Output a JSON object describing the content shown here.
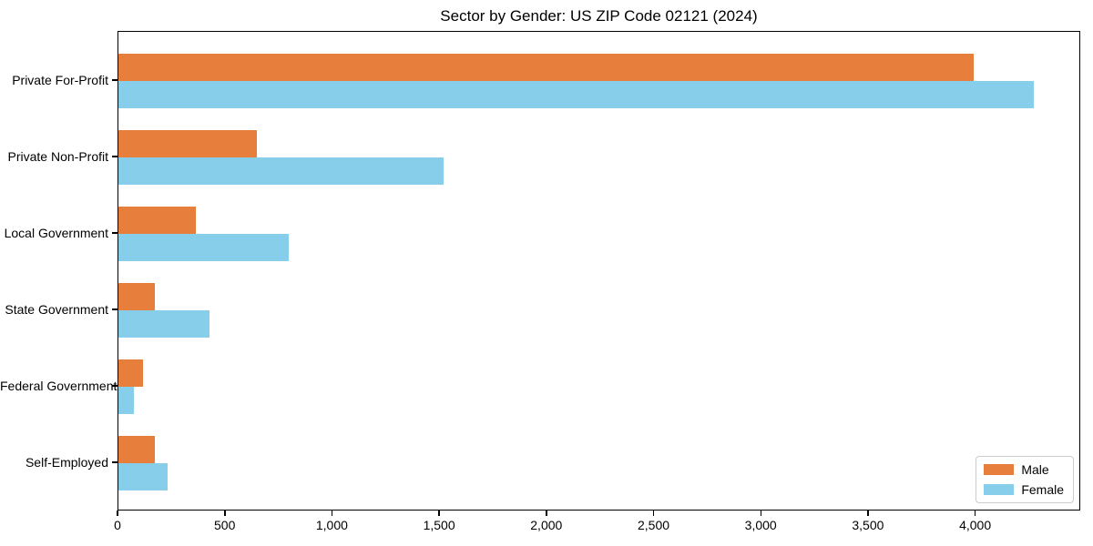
{
  "title": "Sector by Gender: US ZIP Code 02121 (2024)",
  "colors": {
    "male": "#E87E3C",
    "female": "#87CEEB",
    "axis": "#000000",
    "legend_border": "#CCCCCC",
    "background": "#FFFFFF"
  },
  "legend": {
    "position": "lower right",
    "entries": [
      "Male",
      "Female"
    ]
  },
  "chart_data": {
    "type": "bar",
    "orientation": "horizontal",
    "title": "Sector by Gender: US ZIP Code 02121 (2024)",
    "xlabel": "",
    "ylabel": "",
    "grid": false,
    "legend_position": "lower right",
    "categories": [
      "Private For-Profit",
      "Private Non-Profit",
      "Local Government",
      "State Government",
      "Federal Government",
      "Self-Employed"
    ],
    "series": [
      {
        "name": "Male",
        "color": "#E87E3C",
        "values": [
          3990,
          645,
          360,
          170,
          115,
          170
        ]
      },
      {
        "name": "Female",
        "color": "#87CEEB",
        "values": [
          4270,
          1515,
          795,
          425,
          70,
          230
        ]
      }
    ],
    "xlim": [
      0,
      4490
    ],
    "xticks": [
      0,
      500,
      1000,
      1500,
      2000,
      2500,
      3000,
      3500,
      4000
    ],
    "xtick_labels": [
      "0",
      "500",
      "1,000",
      "1,500",
      "2,000",
      "2,500",
      "3,000",
      "3,500",
      "4,000"
    ]
  }
}
